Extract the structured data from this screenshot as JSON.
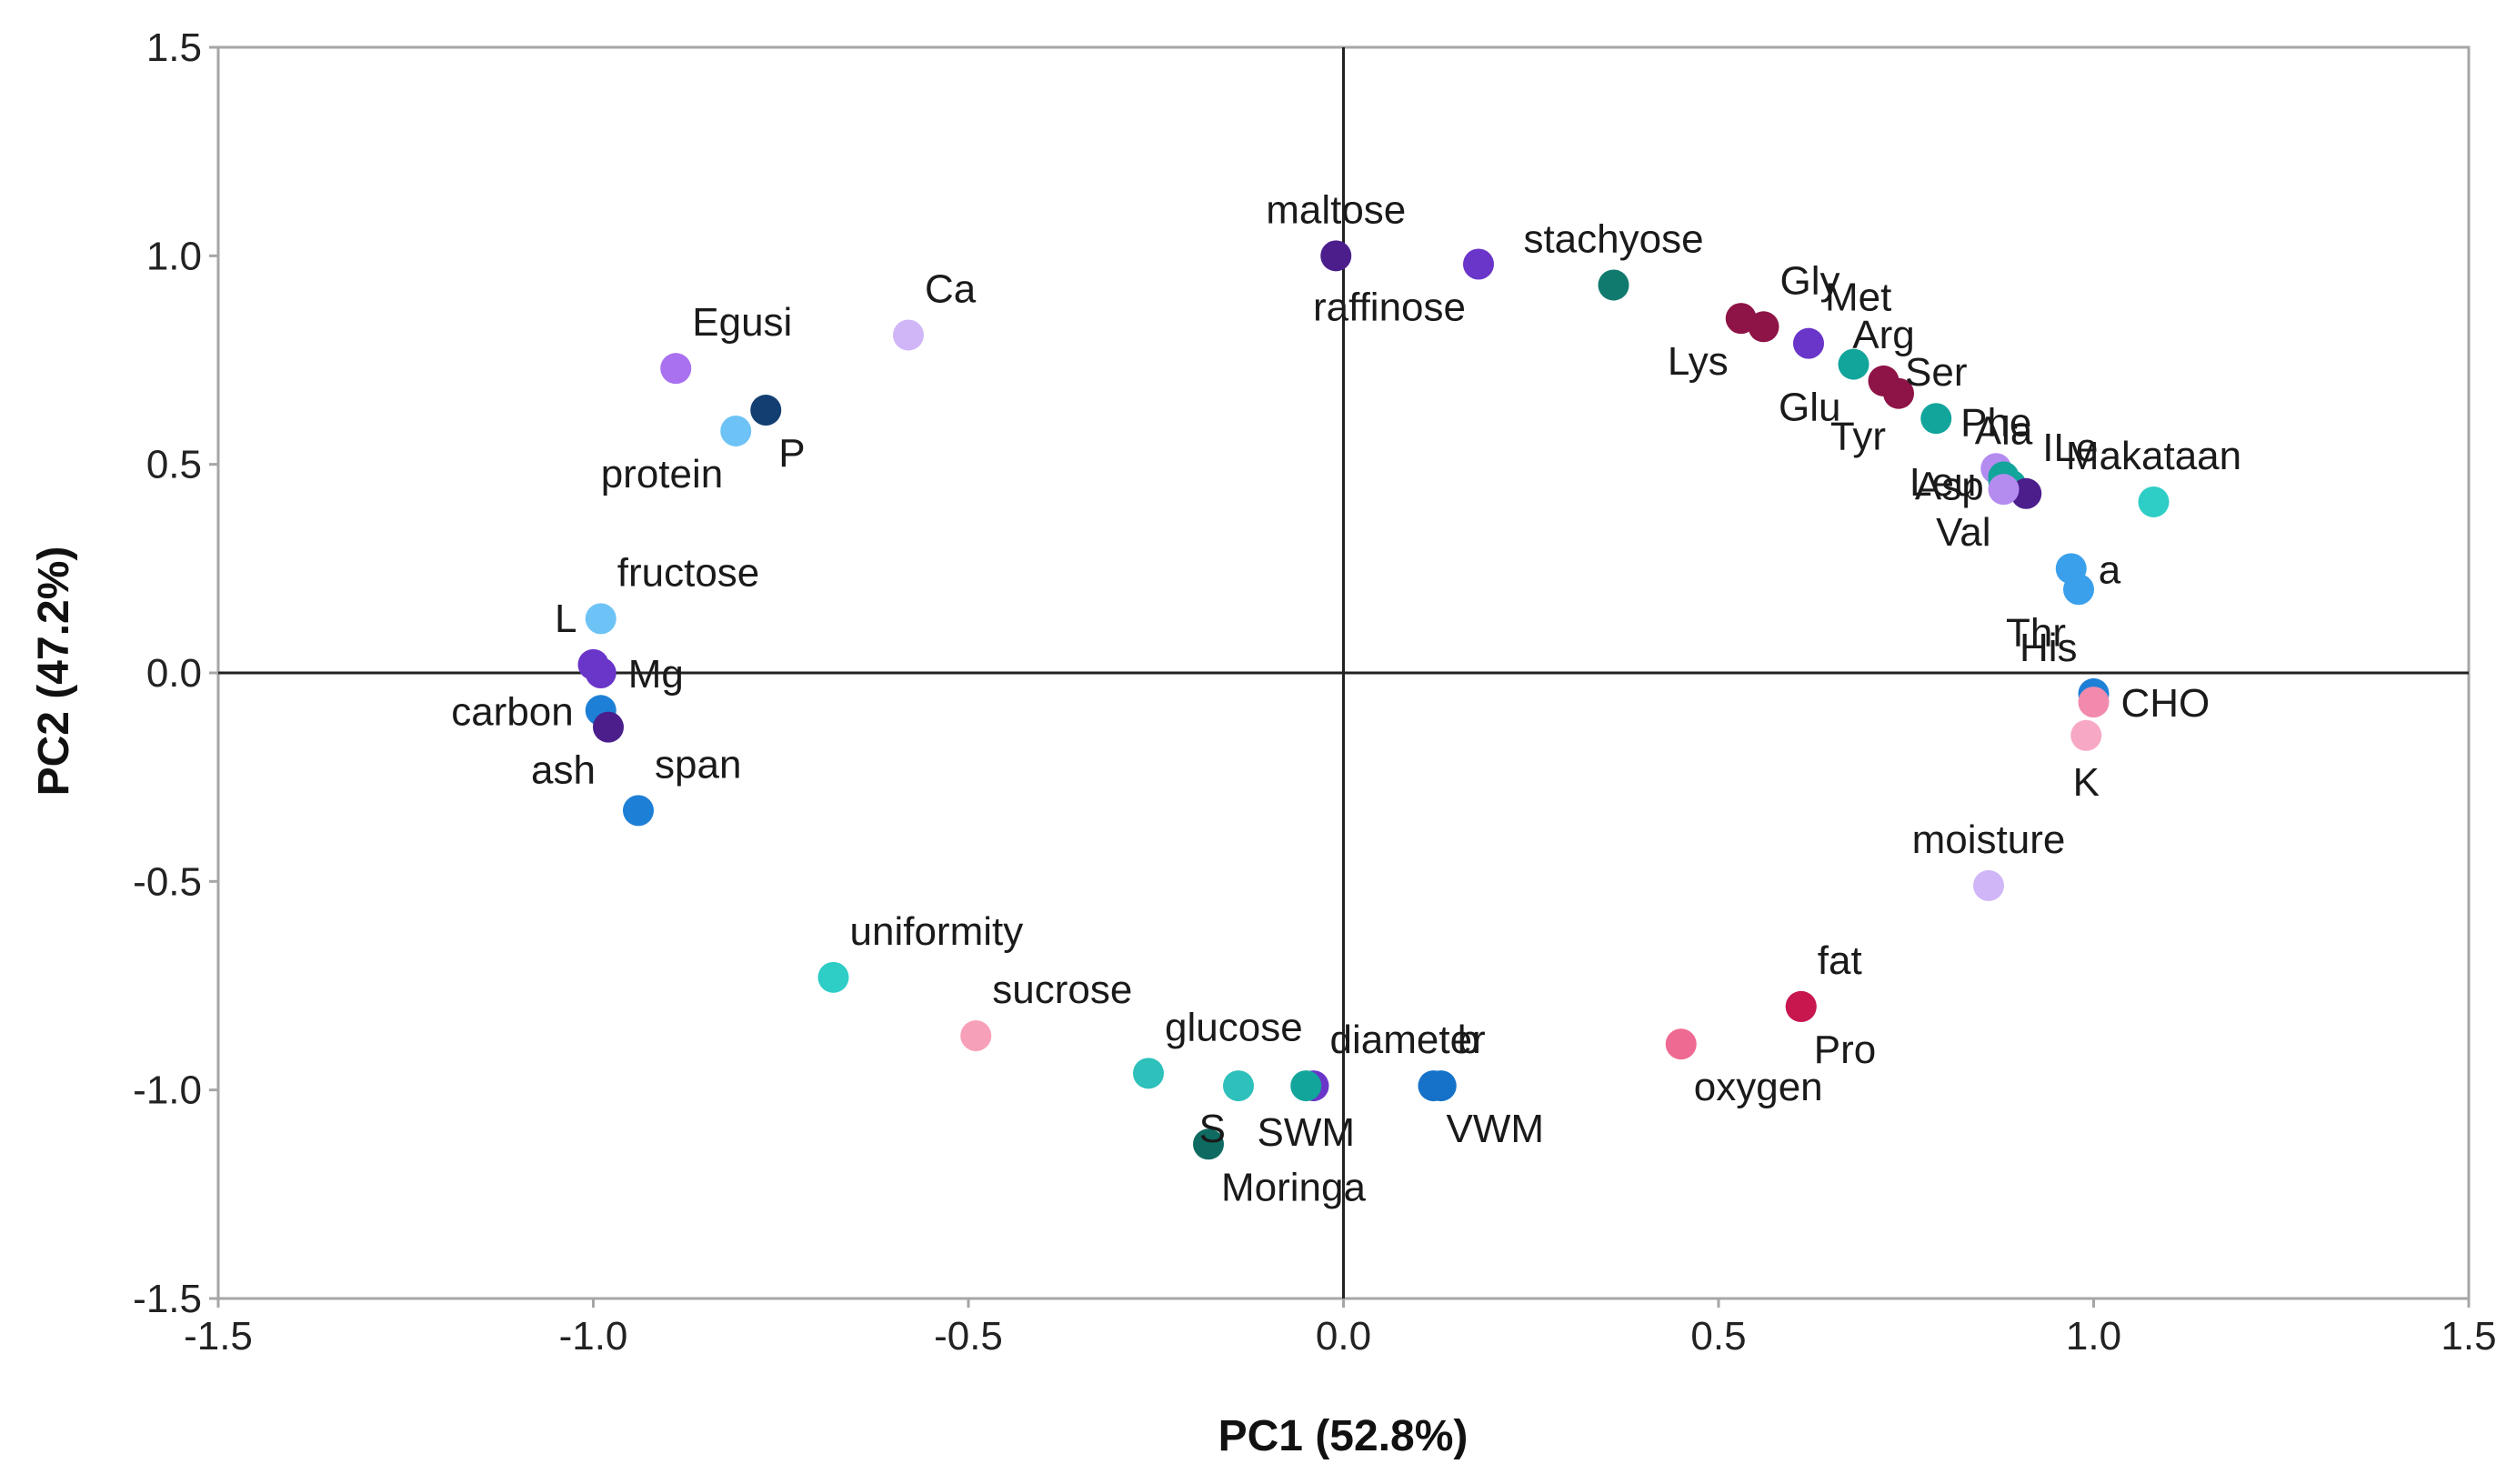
{
  "chart_data": {
    "type": "scatter",
    "title": "",
    "xlabel": "PC1 (52.8%)",
    "ylabel": "PC2 (47.2%)",
    "xlim": [
      -1.5,
      1.5
    ],
    "ylim": [
      -1.5,
      1.5
    ],
    "xticks": [
      "-1.5",
      "-1.0",
      "-0.5",
      "0.0",
      "0.5",
      "1.0",
      "1.5"
    ],
    "yticks": [
      "1.5",
      "1.0",
      "0.5",
      "0.0",
      "-0.5",
      "-1.0",
      "-1.5"
    ],
    "reference_lines": {
      "x": 0,
      "y": 0
    },
    "grid": false,
    "legend": "none",
    "points": [
      {
        "label": "maltose",
        "x": -0.01,
        "y": 1.0,
        "color": "#4B1E8C",
        "label_side": "above"
      },
      {
        "label": "raffinose",
        "x": 0.18,
        "y": 0.98,
        "color": "#6A35C9",
        "label_side": "below-left"
      },
      {
        "label": "stachyose",
        "x": 0.36,
        "y": 0.93,
        "color": "#117A6E",
        "label_side": "above"
      },
      {
        "label": "Lys",
        "x": 0.53,
        "y": 0.85,
        "color": "#8E1346",
        "label_side": "below-left"
      },
      {
        "label": "Gly",
        "x": 0.56,
        "y": 0.83,
        "color": "#8E1346",
        "label_side": "above-right"
      },
      {
        "label": "Met",
        "x": 0.62,
        "y": 0.79,
        "color": "#6A35C9",
        "label_side": "above-right"
      },
      {
        "label": "Glu",
        "x": 0.68,
        "y": 0.74,
        "color": "#12A59B",
        "label_side": "below-left"
      },
      {
        "label": "Arg",
        "x": 0.72,
        "y": 0.7,
        "color": "#8E1346",
        "label_side": "above"
      },
      {
        "label": "Tyr",
        "x": 0.74,
        "y": 0.67,
        "color": "#8E1346",
        "label_side": "below-left"
      },
      {
        "label": "Ser",
        "x": 0.79,
        "y": 0.61,
        "color": "#12A59B",
        "label_side": "above"
      },
      {
        "label": "Phe",
        "x": 0.87,
        "y": 0.49,
        "color": "#B48CF0",
        "label_side": "above"
      },
      {
        "label": "Ala",
        "x": 0.88,
        "y": 0.47,
        "color": "#12A59B",
        "label_side": "above"
      },
      {
        "label": "Leu",
        "x": 0.88,
        "y": 0.46,
        "color": "#12A59B",
        "label_side": "left"
      },
      {
        "label": "Asp",
        "x": 0.89,
        "y": 0.45,
        "color": "#12A59B",
        "label_side": "left"
      },
      {
        "label": "ILe",
        "x": 0.91,
        "y": 0.43,
        "color": "#4B1E8C",
        "label_side": "above-right"
      },
      {
        "label": "Val",
        "x": 0.88,
        "y": 0.44,
        "color": "#B48CF0",
        "label_side": "below-left"
      },
      {
        "label": "Makataan",
        "x": 1.08,
        "y": 0.41,
        "color": "#2ECDC6",
        "label_side": "above"
      },
      {
        "label": "a",
        "x": 0.97,
        "y": 0.25,
        "color": "#3AA0EC",
        "label_side": "right"
      },
      {
        "label": "Thr",
        "x": 0.98,
        "y": 0.2,
        "color": "#3AA0EC",
        "label_side": "below-left"
      },
      {
        "label": "His",
        "x": 1.0,
        "y": -0.05,
        "color": "#1D80D6",
        "label_side": "above-left"
      },
      {
        "label": "CHO",
        "x": 1.0,
        "y": -0.07,
        "color": "#F28AAE",
        "label_side": "right"
      },
      {
        "label": "K",
        "x": 0.99,
        "y": -0.15,
        "color": "#F7A8C4",
        "label_side": "below"
      },
      {
        "label": "moisture",
        "x": 0.86,
        "y": -0.51,
        "color": "#D0B6F7",
        "label_side": "above"
      },
      {
        "label": "fat",
        "x": 0.61,
        "y": -0.8,
        "color": "#C8174F",
        "label_side": "above-right"
      },
      {
        "label": "Pro",
        "x": 0.61,
        "y": -0.8,
        "color": "#C8174F",
        "label_side": "below-right"
      },
      {
        "label": "oxygen",
        "x": 0.45,
        "y": -0.89,
        "color": "#EF6A92",
        "label_side": "below-right"
      },
      {
        "label": "b",
        "x": 0.13,
        "y": -0.99,
        "color": "#1572C8",
        "label_side": "above-right"
      },
      {
        "label": "VWM",
        "x": 0.12,
        "y": -0.99,
        "color": "#1572C8",
        "label_side": "below-right"
      },
      {
        "label": "diameter",
        "x": -0.04,
        "y": -0.99,
        "color": "#6A35C9",
        "label_side": "above-right"
      },
      {
        "label": "SWM",
        "x": -0.05,
        "y": -0.99,
        "color": "#12A59B",
        "label_side": "below"
      },
      {
        "label": "S",
        "x": -0.14,
        "y": -0.99,
        "color": "#2EC0BA",
        "label_side": "below-left"
      },
      {
        "label": "glucose",
        "x": -0.26,
        "y": -0.96,
        "color": "#2EC0BA",
        "label_side": "above-right"
      },
      {
        "label": "Moringa",
        "x": -0.18,
        "y": -1.13,
        "color": "#0F6B62",
        "label_side": "below-right"
      },
      {
        "label": "sucrose",
        "x": -0.49,
        "y": -0.87,
        "color": "#F7A0BA",
        "label_side": "above-right"
      },
      {
        "label": "uniformity",
        "x": -0.68,
        "y": -0.73,
        "color": "#2ECDC6",
        "label_side": "above-right"
      },
      {
        "label": "Ca",
        "x": -0.58,
        "y": 0.81,
        "color": "#D0B6F7",
        "label_side": "above-right"
      },
      {
        "label": "Egusi",
        "x": -0.89,
        "y": 0.73,
        "color": "#A970F0",
        "label_side": "above-right"
      },
      {
        "label": "P",
        "x": -0.77,
        "y": 0.63,
        "color": "#123E72",
        "label_side": "below-right"
      },
      {
        "label": "protein",
        "x": -0.81,
        "y": 0.58,
        "color": "#6EC3F6",
        "label_side": "below-left"
      },
      {
        "label": "fructose",
        "x": -0.99,
        "y": 0.13,
        "color": "#6EC3F6",
        "label_side": "above-right"
      },
      {
        "label": "L",
        "x": -1.0,
        "y": 0.02,
        "color": "#6A35C9",
        "label_side": "above-left"
      },
      {
        "label": "Mg",
        "x": -0.99,
        "y": 0.0,
        "color": "#6A35C9",
        "label_side": "right"
      },
      {
        "label": "carbon",
        "x": -0.99,
        "y": -0.09,
        "color": "#1D80D6",
        "label_side": "left"
      },
      {
        "label": "ash",
        "x": -0.98,
        "y": -0.13,
        "color": "#4B1E8C",
        "label_side": "below-left"
      },
      {
        "label": "span",
        "x": -0.94,
        "y": -0.33,
        "color": "#1D80D6",
        "label_side": "above-right"
      }
    ]
  }
}
